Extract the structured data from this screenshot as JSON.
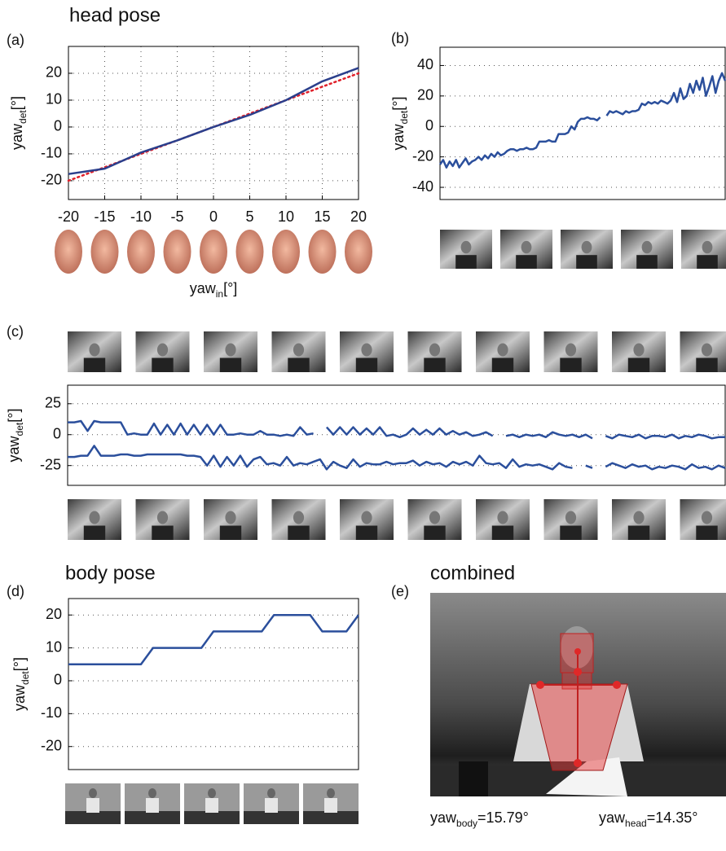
{
  "chart_data": [
    {
      "type": "line",
      "panel_label": "(a)",
      "title": "head pose",
      "ylabel": {
        "text": "yaw",
        "sub": "det",
        "unit": "[°]"
      },
      "xlabel": {
        "text": "yaw",
        "sub": "in",
        "unit": "[°]"
      },
      "x": [
        -20,
        -15,
        -10,
        -5,
        0,
        5,
        10,
        15,
        20
      ],
      "xlim": [
        -20,
        20
      ],
      "xticks": [
        -20,
        -15,
        -10,
        -5,
        0,
        5,
        10,
        15,
        20
      ],
      "ylim": [
        -27,
        30
      ],
      "yticks": [
        -20,
        -10,
        0,
        10,
        20
      ],
      "grid": true,
      "series": [
        {
          "color": "#e0202a",
          "linestyle": "dotted",
          "values": [
            -20,
            -15,
            -10,
            -5,
            0,
            5,
            10,
            15,
            20
          ]
        },
        {
          "color": "#2b3f8c",
          "linestyle": "solid",
          "values": [
            -17.5,
            -15.5,
            -9.5,
            -5,
            0,
            4.5,
            10,
            17,
            22
          ]
        }
      ]
    },
    {
      "type": "line",
      "panel_label": "(b)",
      "ylabel": {
        "text": "yaw",
        "sub": "det",
        "unit": "[°]"
      },
      "ylim": [
        -48,
        52
      ],
      "yticks": [
        -40,
        -20,
        0,
        20,
        40
      ],
      "grid": true,
      "series": [
        {
          "color": "#2b4f9c",
          "linestyle": "solid",
          "values": [
            -25,
            -22,
            -27,
            -23,
            -26,
            -22,
            -27,
            -24,
            -21,
            -25,
            -23,
            -22,
            -20,
            -22,
            -19,
            -21,
            -18,
            -20,
            -17,
            -19,
            -18,
            -16,
            -15,
            -15,
            -16,
            -15,
            -15,
            -14,
            -15,
            -15,
            -14,
            -10,
            -10,
            -10,
            -9,
            -10,
            -10,
            -5,
            -5,
            -5,
            -4,
            0,
            -2,
            3,
            5,
            5,
            6,
            5,
            5,
            4,
            6,
            null,
            7,
            10,
            9,
            10,
            9,
            8,
            10,
            9,
            10,
            10,
            11,
            15,
            14,
            16,
            15,
            16,
            15,
            17,
            16,
            15,
            17,
            22,
            16,
            25,
            18,
            20,
            28,
            22,
            30,
            24,
            32,
            20,
            26,
            33,
            22,
            30,
            35,
            30
          ]
        }
      ]
    },
    {
      "type": "line",
      "panel_label": "(c)",
      "ylabel": {
        "text": "yaw",
        "sub": "det",
        "unit": "[°]"
      },
      "ylim": [
        -41,
        40
      ],
      "yticks": [
        -25,
        0,
        25
      ],
      "grid": true,
      "series": [
        {
          "color": "#2b4f9c",
          "linestyle": "solid",
          "values": [
            10,
            10,
            11,
            3,
            11,
            10,
            10,
            10,
            10,
            0,
            1,
            0,
            0,
            9,
            0,
            8,
            0,
            9,
            0,
            8,
            0,
            8,
            0,
            8,
            0,
            0,
            1,
            0,
            0,
            3,
            0,
            0,
            -1,
            0,
            -1,
            6,
            0,
            1,
            null,
            6,
            0,
            6,
            0,
            6,
            0,
            5,
            0,
            6,
            -1,
            0,
            -2,
            0,
            5,
            0,
            4,
            0,
            5,
            0,
            3,
            0,
            2,
            -1,
            0,
            2,
            -1,
            null,
            -1,
            0,
            -2,
            0,
            -1,
            0,
            -2,
            2,
            0,
            -1,
            0,
            -2,
            0,
            -3,
            null,
            -1,
            -3,
            0,
            -1,
            -2,
            0,
            -3,
            -1,
            -1,
            -2,
            0,
            -3,
            -1,
            -2,
            0,
            -1,
            -3,
            -2,
            -2
          ]
        },
        {
          "color": "#2b4f9c",
          "linestyle": "solid",
          "values": [
            -18,
            -18,
            -17,
            -17,
            -9,
            -17,
            -17,
            -17,
            -16,
            -16,
            -17,
            -17,
            -16,
            -16,
            -16,
            -16,
            -16,
            -16,
            -17,
            -17,
            -18,
            -25,
            -17,
            -26,
            -18,
            -25,
            -17,
            -26,
            -20,
            -18,
            -24,
            -23,
            -25,
            -18,
            -25,
            -23,
            -24,
            -22,
            -20,
            -28,
            -22,
            -25,
            -27,
            -20,
            -26,
            -23,
            -24,
            -24,
            -22,
            -24,
            -23,
            -23,
            -21,
            -25,
            -22,
            -24,
            -23,
            -26,
            -22,
            -24,
            -22,
            -25,
            -17,
            -23,
            -24,
            -23,
            -27,
            -20,
            -26,
            -24,
            -25,
            -24,
            -26,
            -28,
            -23,
            -26,
            -27,
            null,
            -25,
            -27,
            null,
            -26,
            -23,
            -25,
            -27,
            -24,
            -26,
            -25,
            -28,
            -26,
            -27,
            -25,
            -26,
            -28,
            -24,
            -27,
            -26,
            -28,
            -25,
            -27
          ]
        }
      ]
    },
    {
      "type": "line",
      "panel_label": "(d)",
      "title": "body pose",
      "ylabel": {
        "text": "yaw",
        "sub": "det",
        "unit": "[°]"
      },
      "ylim": [
        -27,
        25
      ],
      "yticks": [
        -20,
        -10,
        0,
        10,
        20
      ],
      "grid": true,
      "series": [
        {
          "color": "#2b4f9c",
          "linestyle": "solid",
          "values": [
            5,
            5,
            5,
            5,
            5,
            5,
            5,
            10,
            10,
            10,
            10,
            10,
            15,
            15,
            15,
            15,
            15,
            20,
            20,
            20,
            20,
            15,
            15,
            15,
            20
          ]
        }
      ]
    }
  ],
  "combined": {
    "panel_label": "(e)",
    "title": "combined",
    "annotations": [
      {
        "text": "yaw",
        "sub": "body",
        "rest": "=15.79°"
      },
      {
        "text": "yaw",
        "sub": "head",
        "rest": "=14.35°"
      }
    ]
  }
}
